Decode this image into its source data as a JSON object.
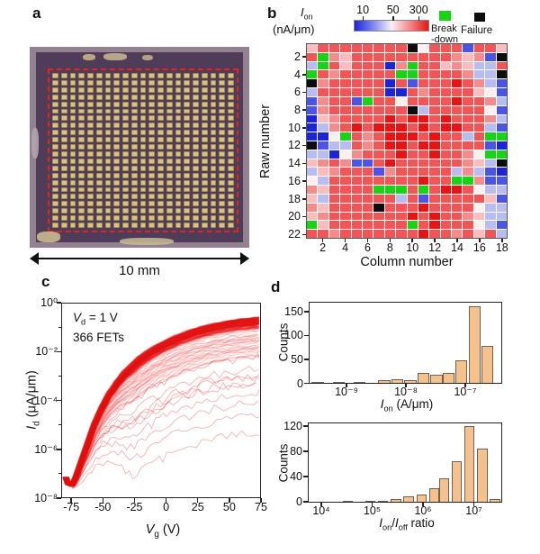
{
  "figure": {
    "panel_a": {
      "label": "a",
      "scale_text": "10 mm",
      "pad_grid": {
        "cols": 21,
        "rows": 22
      },
      "colors": {
        "chip_edge": "#93818f",
        "die": "#4e3c59",
        "pad": "#d8c283",
        "outline": "#e8231c"
      }
    },
    "panel_b": {
      "label": "b",
      "legend_sym": "I",
      "legend_sub": "on",
      "legend_unit": "(nA/μm)",
      "breakdown_line1": "Break",
      "breakdown_line2": "-down",
      "failure_label": "Failure",
      "ylabel": "Raw number",
      "xlabel": "Column number"
    },
    "panel_c": {
      "label": "c",
      "ann_sym": "V",
      "ann_sub": "d",
      "ann_rest": " = 1 V",
      "ann_line2": "366 FETs",
      "ylabel_sym": "I",
      "ylabel_sub": "d",
      "ylabel_rest": " (μA/μm)",
      "xlabel_sym": "V",
      "xlabel_sub": "g",
      "xlabel_rest": " (V)"
    },
    "panel_d": {
      "label": "d",
      "hist1_ylabel": "Counts",
      "hist2_ylabel": "Counts",
      "hist1_xlabel_sym": "I",
      "hist1_xlabel_sub": "on",
      "hist1_xlabel_rest": " (A/μm)",
      "hist2_x_sym1": "I",
      "hist2_x_sub1": "on",
      "hist2_x_mid": "/",
      "hist2_x_sym2": "I",
      "hist2_x_sub2": "off",
      "hist2_x_rest": " ratio"
    }
  },
  "chart_data": [
    {
      "type": "heatmap",
      "title": "Ion (nA/um) per device site",
      "xlabel": "Column number",
      "ylabel": "Raw number",
      "n_rows": 22,
      "n_cols": 18,
      "colorbar_ticks": [
        "10",
        "50",
        "300"
      ],
      "colorbar_tick_pos": [
        0.12,
        0.52,
        0.86
      ],
      "special": {
        "G": "breakdown",
        "K": "failure"
      },
      "value_scale_nA_per_um": {
        "DB": 10,
        "B": 20,
        "LB": 35,
        "W": 50,
        "P": 80,
        "LR": 120,
        "R": 200,
        "DR": 300
      },
      "palette": {
        "DB": "#1c24da",
        "B": "#4a55e6",
        "LB": "#b7bdf0",
        "W": "#faf0f0",
        "P": "#f9bdbd",
        "LR": "#f58c8c",
        "R": "#f15555",
        "DR": "#e81414",
        "G": "#17d417",
        "K": "#0d0d0d"
      },
      "row_tick_labels": [
        "2",
        "4",
        "6",
        "8",
        "10",
        "12",
        "14",
        "16",
        "18",
        "20",
        "22"
      ],
      "col_tick_labels": [
        "2",
        "4",
        "6",
        "8",
        "10",
        "12",
        "14",
        "16",
        "18"
      ],
      "rows": [
        "P R R R R R R R R K W R R R B R R P",
        "R G LR P R R R R R R R R R LR P LR B K",
        "LB G R P R R R DB LR G R R P LR P LB LB R",
        "G R LR R R R R R G G R R R R LR LB LB K",
        "K LR R R R R R DB R B R R R DR R LR LB B",
        "LB R R R R R R DB DB R LR R R R R P W B",
        "B LR R R B G R R W R R R R DR R R LR LB",
        "B LR R R R R R R R K LB R R R R R W B",
        "DB P LR R R R R DR R DR DR R DR R R R LR LB",
        "DB LB LR R DR R DR DR DR R DR R DR DR R R LB B",
        "DB DB W G R LR R DR DR DR R DR R R LB R G G",
        "K B LB LB R LR R DR DR R DR DR R R R R B DB",
        "LB LB DB W LR R R R DR R R DR R R LR W G G",
        "P LR R LR B B R DR R R R R R R LR P LB K",
        "LB P LR R R R B LR R R R R R LB LR LB B DB",
        "W LB R R R R R R R R DR R R G G LR B B",
        "LR P R R R R G G G R G R DR DR R W LB LB",
        "P LB R R R R R R LB R B R R R R R P B",
        "LR P R R R R K R R R DR R R R R W LB LB",
        "P LR R R R R R R R DR R DR R R LR P LB LB",
        "G P R R R R R R R G R DR R R R W LB B",
        "R R LR R R R R R R R DR R R LR R P R LB"
      ]
    },
    {
      "type": "line",
      "title": "Transfer curves of 366 FETs",
      "n_curves": 366,
      "annotation_line1": "Vd = 1 V",
      "annotation_line2": "366 FETs",
      "color": "#e41414",
      "xlim": [
        -83,
        75
      ],
      "ylim_log10": [
        -8,
        0
      ],
      "x_ticks": [
        -75,
        -50,
        -25,
        0,
        25,
        50,
        75
      ],
      "x_tick_labels": [
        "-75",
        "-50",
        "-25",
        "0",
        "25",
        "50",
        "75"
      ],
      "y_ticks_log10": [
        0,
        -2,
        -4,
        -6,
        -8
      ],
      "y_tick_labels": [
        "10⁰",
        "10⁻²",
        "10⁻⁴",
        "10⁻⁶",
        "10⁻⁸"
      ],
      "y_minor_ticks_log10": [
        -1,
        -3,
        -5,
        -7
      ],
      "spread_log10": [
        0,
        -4.8
      ],
      "base_curve": {
        "x": [
          -80,
          -78,
          -75,
          -72,
          -69,
          -66,
          -63,
          -60,
          -57,
          -54,
          -51,
          -48,
          -45,
          -42,
          -39,
          -36,
          -33,
          -30,
          -27,
          -24,
          -21,
          -18,
          -15,
          -12,
          -9,
          -6,
          -3,
          0,
          4,
          8,
          12,
          16,
          20,
          24,
          28,
          32,
          36,
          40,
          44,
          48,
          52,
          56,
          60,
          64,
          68,
          72,
          75
        ],
        "log10_y": [
          -7.2,
          -7.5,
          -7.55,
          -7.2,
          -6.75,
          -6.3,
          -5.85,
          -5.4,
          -4.95,
          -4.6,
          -4.25,
          -3.95,
          -3.65,
          -3.45,
          -3.2,
          -3.0,
          -2.8,
          -2.65,
          -2.5,
          -2.35,
          -2.2,
          -2.1,
          -1.98,
          -1.88,
          -1.78,
          -1.7,
          -1.62,
          -1.54,
          -1.44,
          -1.35,
          -1.26,
          -1.18,
          -1.1,
          -1.04,
          -0.98,
          -0.92,
          -0.87,
          -0.82,
          -0.78,
          -0.74,
          -0.71,
          -0.68,
          -0.65,
          -0.63,
          -0.61,
          -0.59,
          -0.575
        ]
      }
    },
    {
      "type": "bar",
      "title": "Ion histogram",
      "ylabel": "Counts",
      "x_scale": "log10",
      "x_ticks_log10": [
        -9,
        -8,
        -7
      ],
      "x_tick_labels": [
        "10⁻⁹",
        "10⁻⁸",
        "10⁻⁷"
      ],
      "y_ticks": [
        0,
        50,
        100,
        150
      ],
      "bin_width_decades": 0.2,
      "bar_fill": "#f5c28d",
      "bar_border": "#6d6156",
      "bars": [
        {
          "log10_x": -9.5,
          "count": 2
        },
        {
          "log10_x": -9.15,
          "count": 1
        },
        {
          "log10_x": -8.8,
          "count": 2
        },
        {
          "log10_x": -8.38,
          "count": 5
        },
        {
          "log10_x": -8.16,
          "count": 8
        },
        {
          "log10_x": -7.94,
          "count": 6
        },
        {
          "log10_x": -7.72,
          "count": 20
        },
        {
          "log10_x": -7.5,
          "count": 17
        },
        {
          "log10_x": -7.3,
          "count": 21
        },
        {
          "log10_x": -7.08,
          "count": 47
        },
        {
          "log10_x": -6.86,
          "count": 160
        },
        {
          "log10_x": -6.64,
          "count": 78
        }
      ]
    },
    {
      "type": "bar",
      "title": "Ion/Ioff ratio histogram",
      "ylabel": "Counts",
      "x_scale": "log10",
      "x_ticks_log10": [
        4,
        5,
        6,
        7
      ],
      "x_tick_labels": [
        "10⁴",
        "10⁵",
        "10⁶",
        "10⁷"
      ],
      "y_ticks": [
        0,
        40,
        80,
        120
      ],
      "bin_width_decades": 0.2,
      "bar_fill": "#f5c28d",
      "bar_border": "#6d6156",
      "bars": [
        {
          "log10_x": 4.5,
          "count": 1
        },
        {
          "log10_x": 4.95,
          "count": 2
        },
        {
          "log10_x": 5.2,
          "count": 2
        },
        {
          "log10_x": 5.45,
          "count": 4
        },
        {
          "log10_x": 5.7,
          "count": 9
        },
        {
          "log10_x": 5.95,
          "count": 12
        },
        {
          "log10_x": 6.2,
          "count": 21
        },
        {
          "log10_x": 6.4,
          "count": 37
        },
        {
          "log10_x": 6.65,
          "count": 65
        },
        {
          "log10_x": 6.9,
          "count": 120
        },
        {
          "log10_x": 7.15,
          "count": 85
        },
        {
          "log10_x": 7.4,
          "count": 5
        }
      ]
    }
  ]
}
